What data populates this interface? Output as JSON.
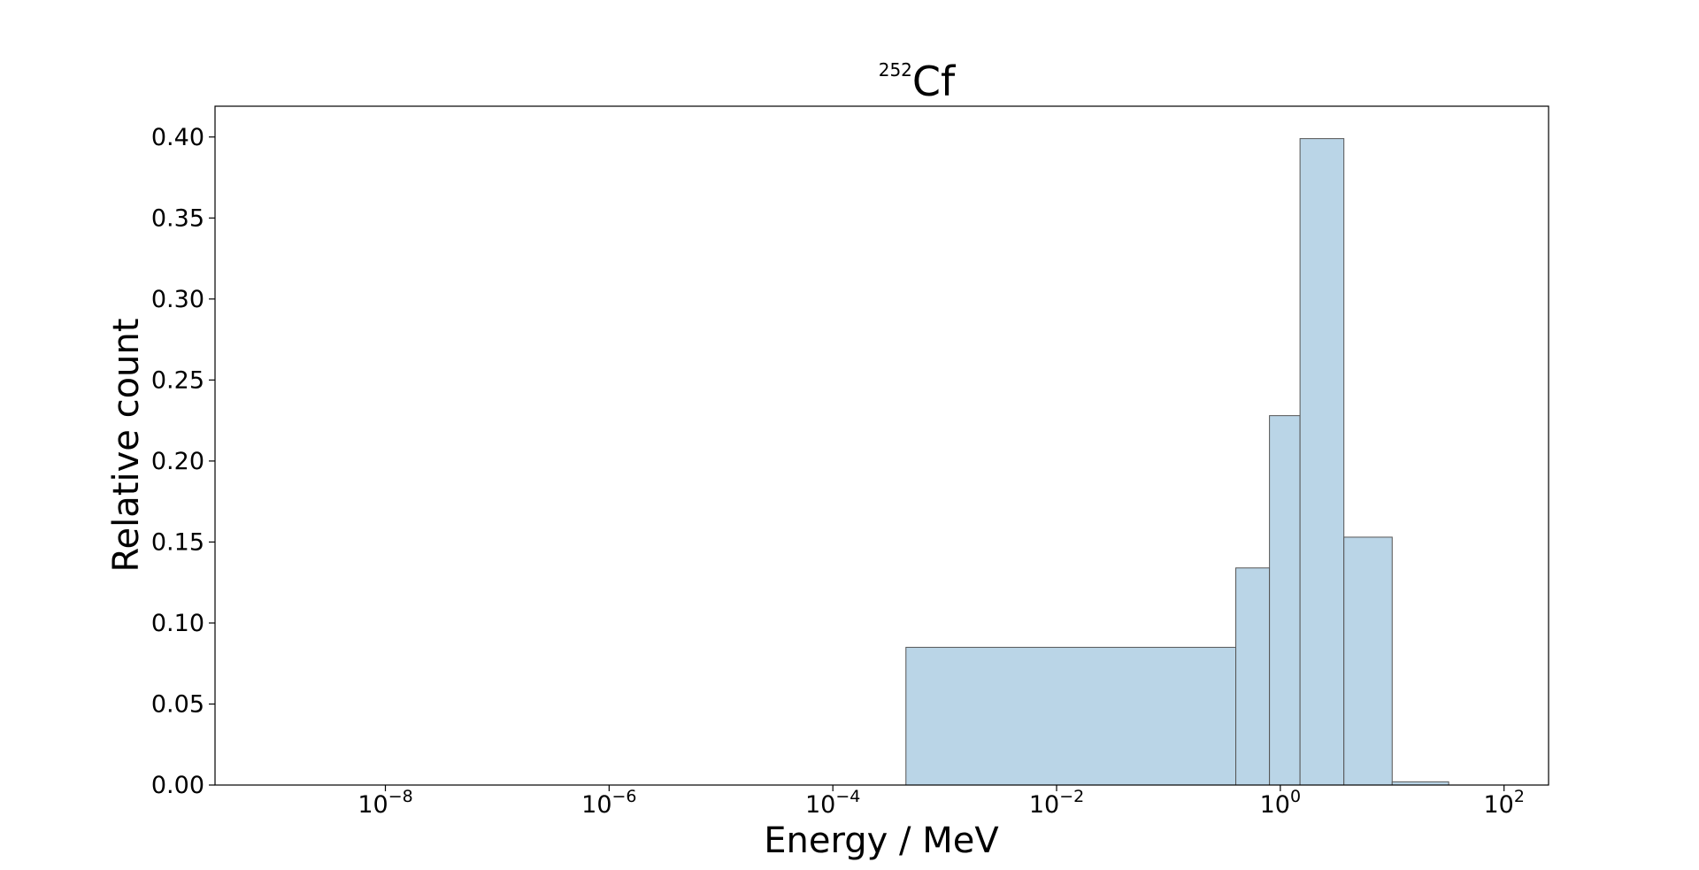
{
  "chart_data": {
    "type": "bar",
    "title": {
      "superscript": "252",
      "main": "Cf"
    },
    "xlabel": "Energy / MeV",
    "ylabel": "Relative count",
    "x_scale": "log",
    "xlim": [
      3e-10,
      250
    ],
    "ylim": [
      0.0,
      0.419
    ],
    "grid": false,
    "bar_color": "#bad5e7",
    "edge_color": "#555555",
    "x_ticks": [
      {
        "base": "10",
        "exp": "−8",
        "value": 1e-08
      },
      {
        "base": "10",
        "exp": "−6",
        "value": 1e-06
      },
      {
        "base": "10",
        "exp": "−4",
        "value": 0.0001
      },
      {
        "base": "10",
        "exp": "−2",
        "value": 0.01
      },
      {
        "base": "10",
        "exp": "0",
        "value": 1
      },
      {
        "base": "10",
        "exp": "2",
        "value": 100
      }
    ],
    "y_ticks": [
      "0.00",
      "0.05",
      "0.10",
      "0.15",
      "0.20",
      "0.25",
      "0.30",
      "0.35",
      "0.40"
    ],
    "bins": [
      {
        "x0": 0.00045,
        "x1": 0.4,
        "value": 0.085
      },
      {
        "x0": 0.4,
        "x1": 0.8,
        "value": 0.134
      },
      {
        "x0": 0.8,
        "x1": 1.5,
        "value": 0.228
      },
      {
        "x0": 1.5,
        "x1": 3.7,
        "value": 0.399
      },
      {
        "x0": 3.7,
        "x1": 10.0,
        "value": 0.153
      },
      {
        "x0": 10.0,
        "x1": 32.0,
        "value": 0.002
      }
    ]
  }
}
